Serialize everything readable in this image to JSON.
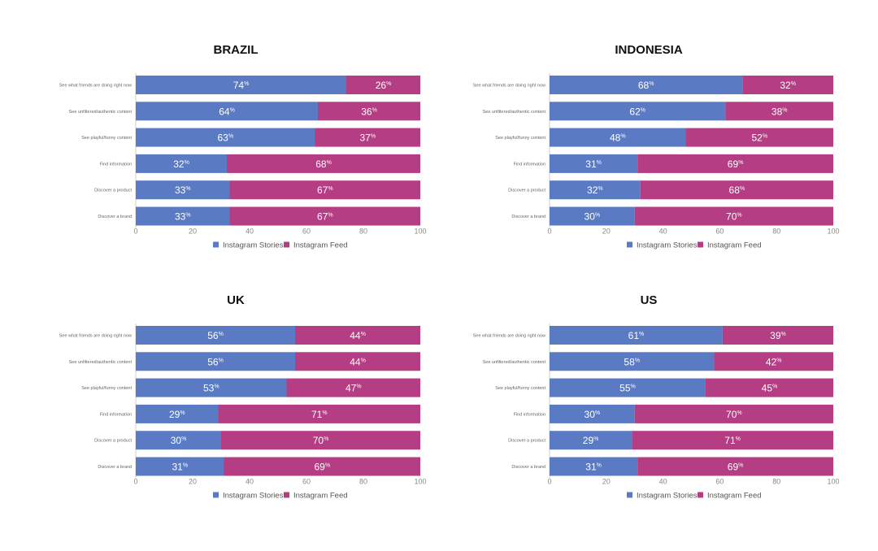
{
  "chart_data": [
    {
      "type": "bar",
      "orientation": "horizontal",
      "stacked": true,
      "title": "BRAZIL",
      "categories": [
        "See what friends are doing right now",
        "See unfiltered/authentic content",
        "See playful/funny content",
        "Find information",
        "Discover a product",
        "Discover a brand"
      ],
      "series": [
        {
          "name": "Instagram Stories",
          "values": [
            74,
            64,
            63,
            32,
            33,
            33
          ]
        },
        {
          "name": "Instagram Feed",
          "values": [
            26,
            36,
            37,
            68,
            67,
            67
          ]
        }
      ],
      "value_suffix": "%",
      "xlim": [
        0,
        100
      ],
      "xticks": [
        0,
        20,
        40,
        60,
        80,
        100
      ],
      "legend_position": "bottom-center"
    },
    {
      "type": "bar",
      "orientation": "horizontal",
      "stacked": true,
      "title": "INDONESIA",
      "categories": [
        "See what friends are doing right now",
        "See unfiltered/authentic content",
        "See playful/funny content",
        "Find information",
        "Discover a product",
        "Discover a brand"
      ],
      "series": [
        {
          "name": "Instagram Stories",
          "values": [
            68,
            62,
            48,
            31,
            32,
            30
          ]
        },
        {
          "name": "Instagram Feed",
          "values": [
            32,
            38,
            52,
            69,
            68,
            70
          ]
        }
      ],
      "value_suffix": "%",
      "xlim": [
        0,
        100
      ],
      "xticks": [
        0,
        20,
        40,
        60,
        80,
        100
      ],
      "legend_position": "bottom-center"
    },
    {
      "type": "bar",
      "orientation": "horizontal",
      "stacked": true,
      "title": "UK",
      "categories": [
        "See what friends are doing right now",
        "See unfiltered/authentic content",
        "See playful/funny content",
        "Find information",
        "Discover a product",
        "Discover a brand"
      ],
      "series": [
        {
          "name": "Instagram Stories",
          "values": [
            56,
            56,
            53,
            29,
            30,
            31
          ]
        },
        {
          "name": "Instagram Feed",
          "values": [
            44,
            44,
            47,
            71,
            70,
            69
          ]
        }
      ],
      "value_suffix": "%",
      "xlim": [
        0,
        100
      ],
      "xticks": [
        0,
        20,
        40,
        60,
        80,
        100
      ],
      "legend_position": "bottom-center"
    },
    {
      "type": "bar",
      "orientation": "horizontal",
      "stacked": true,
      "title": "US",
      "categories": [
        "See what friends are doing right now",
        "See unfiltered/authentic content",
        "See playful/funny content",
        "Find information",
        "Discover a product",
        "Discover a brand"
      ],
      "series": [
        {
          "name": "Instagram Stories",
          "values": [
            61,
            58,
            55,
            30,
            29,
            31
          ]
        },
        {
          "name": "Instagram Feed",
          "values": [
            39,
            42,
            45,
            70,
            71,
            69
          ]
        }
      ],
      "value_suffix": "%",
      "xlim": [
        0,
        100
      ],
      "xticks": [
        0,
        20,
        40,
        60,
        80,
        100
      ],
      "legend_position": "bottom-center"
    }
  ],
  "colors": {
    "Instagram Stories": "#5a7bc4",
    "Instagram Feed": "#b43d83"
  }
}
